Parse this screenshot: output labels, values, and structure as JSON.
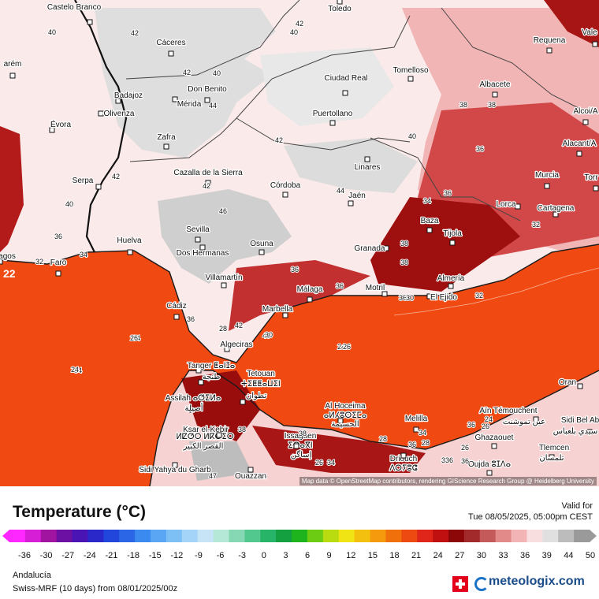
{
  "cities": [
    {
      "name": "Castelo Branco",
      "id": "castelo-branco"
    },
    {
      "name": "Cáceres",
      "id": "caceres"
    },
    {
      "name": "Toledo",
      "id": "toledo"
    },
    {
      "name": "Requena",
      "id": "requena"
    },
    {
      "name": "Vale",
      "id": "valencia"
    },
    {
      "name": "arém",
      "id": "santarem"
    },
    {
      "name": "Don Benito",
      "id": "don-benito"
    },
    {
      "name": "Ciudad Real",
      "id": "ciudad-real"
    },
    {
      "name": "Tomelloso",
      "id": "tomelloso"
    },
    {
      "name": "Albacete",
      "id": "albacete"
    },
    {
      "name": "Badajoz",
      "id": "badajoz"
    },
    {
      "name": "Mérida",
      "id": "merida"
    },
    {
      "name": "Olivenza",
      "id": "olivenza"
    },
    {
      "name": "Puertollano",
      "id": "puertollano"
    },
    {
      "name": "Alcoi/A",
      "id": "alcoi"
    },
    {
      "name": "Évora",
      "id": "evora"
    },
    {
      "name": "Zafra",
      "id": "zafra"
    },
    {
      "name": "Alacant/A",
      "id": "alacant"
    },
    {
      "name": "Linares",
      "id": "linares"
    },
    {
      "name": "Cazalla de la Sierra",
      "id": "cazalla"
    },
    {
      "name": "Murcia",
      "id": "murcia"
    },
    {
      "name": "Serpa",
      "id": "serpa"
    },
    {
      "name": "Córdoba",
      "id": "cordoba"
    },
    {
      "name": "Jaén",
      "id": "jaen"
    },
    {
      "name": "Torr",
      "id": "torrevieja"
    },
    {
      "name": "Lorca",
      "id": "lorca"
    },
    {
      "name": "Cartagena",
      "id": "cartagena"
    },
    {
      "name": "Sevilla",
      "id": "sevilla"
    },
    {
      "name": "Baza",
      "id": "baza"
    },
    {
      "name": "Huelva",
      "id": "huelva"
    },
    {
      "name": "Tijola",
      "id": "tijola"
    },
    {
      "name": "agos",
      "id": "lagos"
    },
    {
      "name": "Faro",
      "id": "faro"
    },
    {
      "name": "Osuna",
      "id": "osuna"
    },
    {
      "name": "Dos Hermanas",
      "id": "dos-hermanas"
    },
    {
      "name": "Granada",
      "id": "granada"
    },
    {
      "name": "Almería",
      "id": "almeria"
    },
    {
      "name": "Villamartín",
      "id": "villamartin"
    },
    {
      "name": "Málaga",
      "id": "malaga"
    },
    {
      "name": "Motril",
      "id": "motril"
    },
    {
      "name": "El Ejido",
      "id": "el-ejido"
    },
    {
      "name": "Marbella",
      "id": "marbella"
    },
    {
      "name": "Cádiz",
      "id": "cadiz"
    },
    {
      "name": "Algeciras",
      "id": "algeciras"
    },
    {
      "name": "Tanger ⵟⴰⵏⵊⴰ",
      "id": "tanger"
    },
    {
      "name": "طنجة",
      "id": "tanger-ar"
    },
    {
      "name": "Tetouan",
      "id": "tetouan"
    },
    {
      "name": "ⵜⵉⵟⵟⴰⵡⵉⵏ",
      "id": "tetouan-tz"
    },
    {
      "name": "تطوان",
      "id": "tetouan-ar"
    },
    {
      "name": "Oran",
      "id": "oran"
    },
    {
      "name": "Assilah ⴰⵚⵉⵍⴰ",
      "id": "assilah"
    },
    {
      "name": "أصيلة",
      "id": "assilah-ar"
    },
    {
      "name": "Al Hoceima",
      "id": "al-hoceima"
    },
    {
      "name": "ⴰⵍⵃⵓⵙⵉⵎⴰ",
      "id": "al-hoceima-tz"
    },
    {
      "name": "الحسيمة",
      "id": "al-hoceima-ar"
    },
    {
      "name": "Melilla",
      "id": "melilla"
    },
    {
      "name": "Aïn Témouchent",
      "id": "ain-temouchent"
    },
    {
      "name": "عين تموشنت",
      "id": "ain-temouchent-ar"
    },
    {
      "name": "Sidi Bel Ab",
      "id": "sidi-bel-abbes"
    },
    {
      "name": "سيدي بلعباس",
      "id": "sidi-bel-abbes-ar"
    },
    {
      "name": "Ksar el-Kebir",
      "id": "ksar-el-kebir"
    },
    {
      "name": "ⵍⵇⵚⵔ ⵍⴽⴱⵉⵔ",
      "id": "ksar-el-kebir-tz"
    },
    {
      "name": "القصر الكبير",
      "id": "ksar-el-kebir-ar"
    },
    {
      "name": "Issaguen",
      "id": "issaguen"
    },
    {
      "name": "ⵉⵙⴰⴳⵏ",
      "id": "issaguen-tz"
    },
    {
      "name": "إساگن",
      "id": "issaguen-ar"
    },
    {
      "name": "Ghazaouet",
      "id": "ghazaouet"
    },
    {
      "name": "Tlemcen",
      "id": "tlemcen"
    },
    {
      "name": "تلمسان",
      "id": "tlemcen-ar"
    },
    {
      "name": "Driouch",
      "id": "driouch"
    },
    {
      "name": "ⴷⵔⵢⵓⵛ",
      "id": "driouch-tz"
    },
    {
      "name": "Oujda ⵓⵊⴷⴰ",
      "id": "oujda"
    },
    {
      "name": "Sidi Yahya du Gharb",
      "id": "sidi-yahya"
    },
    {
      "name": "Ouazzan",
      "id": "ouezzane"
    }
  ],
  "values": [
    "40",
    "42",
    "40",
    "42",
    "40",
    "42",
    "38",
    "38",
    "44",
    "36",
    "36",
    "42",
    "40",
    "42",
    "42",
    "40",
    "44",
    "46",
    "36",
    "38",
    "34",
    "34",
    "32",
    "38",
    "36",
    "36",
    "36",
    "34",
    "34",
    "32",
    "36",
    "42",
    "40",
    "28",
    "24",
    "30",
    "38",
    "34",
    "36",
    "38",
    "24",
    "26",
    "32",
    "34",
    "38",
    "36",
    "36",
    "30",
    "26",
    "28",
    "36",
    "26",
    "26",
    "24",
    "28",
    "26",
    "47",
    "22"
  ],
  "attribution": "Map data © OpenStreetMap contributors, rendering GIScience Research Group @ Heidelberg University",
  "legend": {
    "title": "Temperature (°C)",
    "valid_label": "Valid for",
    "valid_time": "Tue 08/05/2025, 05:00pm CEST",
    "ticks": [
      "-36",
      "-30",
      "-27",
      "-24",
      "-21",
      "-18",
      "-15",
      "-12",
      "-9",
      "-6",
      "-3",
      "0",
      "3",
      "6",
      "9",
      "12",
      "15",
      "18",
      "21",
      "24",
      "27",
      "30",
      "33",
      "36",
      "39",
      "44",
      "50"
    ],
    "region": "Andalucía",
    "model": "Swiss-MRF (10 days)  from  08/01/2025/00z",
    "brand": "meteologix.com"
  },
  "colors": {
    "sea": "#f04a12",
    "hot_land": "#8c0a0a",
    "warm_land": "#f6c7c7",
    "cool_land": "#e2e2e2"
  }
}
